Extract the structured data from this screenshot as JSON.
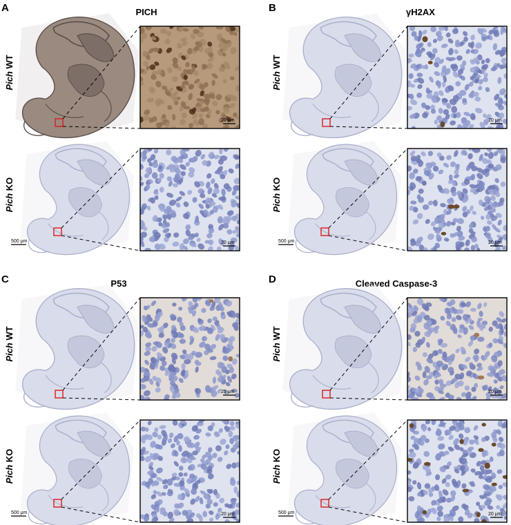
{
  "panels": [
    {
      "letter": "A",
      "title": "PICH",
      "rows": [
        {
          "gene": "Pich",
          "genotype": "WT",
          "stain": "brown",
          "scale_label": "20 μm",
          "has_embryo_scale": false
        },
        {
          "gene": "Pich",
          "genotype": "KO",
          "stain": "blue",
          "scale_label": "20 μm",
          "has_embryo_scale": true,
          "embryo_scale_label": "500 μm"
        }
      ]
    },
    {
      "letter": "B",
      "title": "γH2AX",
      "rows": [
        {
          "gene": "Pich",
          "genotype": "WT",
          "stain": "blue-sparse-brown",
          "scale_label": "20 μm",
          "has_embryo_scale": false
        },
        {
          "gene": "Pich",
          "genotype": "KO",
          "stain": "blue-sparse-brown",
          "scale_label": "20 μm",
          "has_embryo_scale": true,
          "embryo_scale_label": "500 μm"
        }
      ]
    },
    {
      "letter": "C",
      "title": "P53",
      "rows": [
        {
          "gene": "Pich",
          "genotype": "WT",
          "stain": "blue-tan",
          "scale_label": "25 μm",
          "has_embryo_scale": false
        },
        {
          "gene": "Pich",
          "genotype": "KO",
          "stain": "blue",
          "scale_label": "20 μm",
          "has_embryo_scale": true,
          "embryo_scale_label": "500 μm"
        }
      ]
    },
    {
      "letter": "D",
      "title": "Cleaved Caspase-3",
      "rows": [
        {
          "gene": "Pich",
          "genotype": "WT",
          "stain": "blue-tan",
          "scale_label": "20 μm",
          "has_embryo_scale": false
        },
        {
          "gene": "Pich",
          "genotype": "KO",
          "stain": "blue-dark-brown",
          "scale_label": "20 μm",
          "has_embryo_scale": true,
          "embryo_scale_label": "500 μm"
        }
      ]
    }
  ],
  "colors": {
    "brown_bg": "#b79a7c",
    "blue_bg": "#dfe3ef",
    "nucleus_blue": "#8793c8",
    "nucleus_brown": "#6b4a2c",
    "roi_box": "#e0181b"
  }
}
